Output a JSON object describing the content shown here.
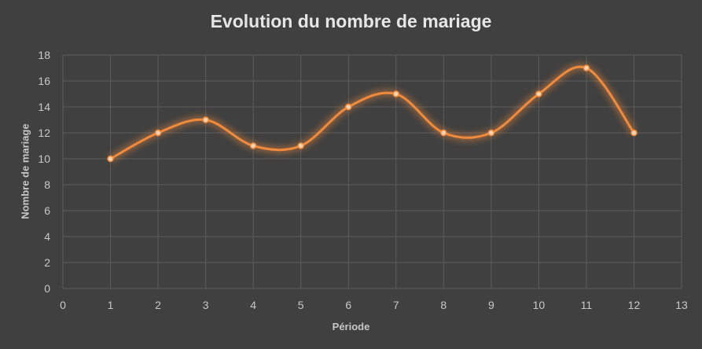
{
  "chart_data": {
    "type": "scatter",
    "title": "Evolution du nombre de mariage",
    "xlabel": "Période",
    "ylabel": "Nombre de mariage",
    "xlim": [
      0,
      13
    ],
    "ylim": [
      0,
      18
    ],
    "xticks": [
      0,
      1,
      2,
      3,
      4,
      5,
      6,
      7,
      8,
      9,
      10,
      11,
      12,
      13
    ],
    "yticks": [
      0,
      2,
      4,
      6,
      8,
      10,
      12,
      14,
      16,
      18
    ],
    "grid": true,
    "smooth_line": true,
    "x": [
      1,
      2,
      3,
      4,
      5,
      6,
      7,
      8,
      9,
      10,
      11,
      12
    ],
    "y": [
      10,
      12,
      13,
      11,
      11,
      14,
      15,
      12,
      12,
      15,
      17,
      12
    ],
    "colors": {
      "background": "#404040",
      "line": "#f08a3c",
      "marker": "#f4a15e",
      "grid": "#5c5c5c",
      "text": "#c8c8c8"
    }
  }
}
